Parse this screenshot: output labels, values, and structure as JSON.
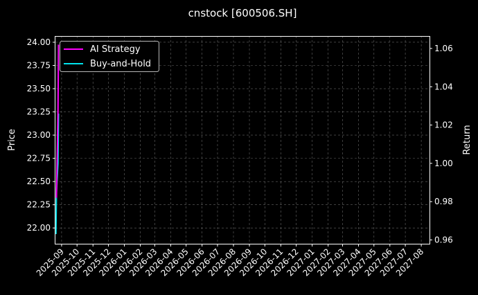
{
  "chart_data": {
    "type": "line",
    "title": "cnstock [600506.SH]",
    "ylabel": "Price",
    "y2label": "Return",
    "ylim": [
      21.83,
      24.067
    ],
    "y2lim": [
      0.958,
      1.0665
    ],
    "xlim": [
      "2025-08-20",
      "2027-08-17"
    ],
    "yticks": [
      "22.00",
      "22.25",
      "22.50",
      "22.75",
      "23.00",
      "23.25",
      "23.50",
      "23.75",
      "24.00"
    ],
    "y2ticks": [
      "0.96",
      "0.98",
      "1.00",
      "1.02",
      "1.04",
      "1.06"
    ],
    "xticks": [
      "2025-09",
      "2025-10",
      "2025-11",
      "2025-12",
      "2026-01",
      "2026-02",
      "2026-03",
      "2026-04",
      "2026-05",
      "2026-06",
      "2026-07",
      "2026-08",
      "2026-09",
      "2026-10",
      "2026-11",
      "2026-12",
      "2027-01",
      "2027-02",
      "2027-03",
      "2027-04",
      "2027-05",
      "2027-06",
      "2027-07",
      "2027-08"
    ],
    "grid": true,
    "legend_position": "top-left",
    "series": [
      {
        "name": "AI Strategy",
        "color": "#ff00ff",
        "axis": "right",
        "x": [
          "2025-08-22",
          "2025-08-25",
          "2025-08-26"
        ],
        "y": [
          0.982,
          1.027,
          1.062
        ]
      },
      {
        "name": "Buy-and-Hold",
        "color": "#00e5ee",
        "axis": "right",
        "x": [
          "2025-08-21",
          "2025-08-22",
          "2025-08-25",
          "2025-08-26"
        ],
        "y": [
          0.963,
          0.985,
          1.0,
          1.026
        ]
      }
    ]
  }
}
